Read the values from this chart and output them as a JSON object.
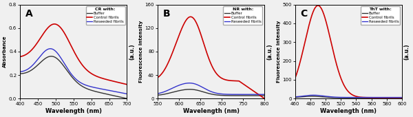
{
  "panel_A": {
    "title": "A",
    "legend_title": "CR with:",
    "xlabel": "Wavelength (nm)",
    "ylabel": "Absorbance",
    "xlim": [
      400,
      700
    ],
    "ylim": [
      0.0,
      0.8
    ],
    "yticks": [
      0.0,
      0.2,
      0.4,
      0.6,
      0.8
    ],
    "xticks": [
      400,
      450,
      500,
      550,
      600,
      650,
      700
    ],
    "legend_labels": [
      "Buffer",
      "Control fibrils",
      "Reseeded fibrils"
    ],
    "line_colors": [
      "#333333",
      "#cc0000",
      "#3333cc"
    ]
  },
  "panel_B": {
    "title": "B",
    "legend_title": "NR with:",
    "xlabel": "Wavelength (nm)",
    "ylabel": "Fluorescence intensity",
    "xlim": [
      550,
      800
    ],
    "ylim": [
      0,
      160
    ],
    "yticks": [
      0,
      40,
      80,
      120,
      160
    ],
    "xticks": [
      550,
      600,
      650,
      700,
      750,
      800
    ],
    "legend_labels": [
      "Buffer",
      "Control fibrils",
      "Reseeded fibrils"
    ],
    "line_colors": [
      "#333333",
      "#cc0000",
      "#3333cc"
    ]
  },
  "panel_C": {
    "title": "C",
    "legend_title": "ThT with:",
    "xlabel": "Wavelength (nm)",
    "ylabel": "Fluorescence intensity",
    "xlim": [
      460,
      600
    ],
    "ylim": [
      0,
      500
    ],
    "yticks": [
      0,
      100,
      200,
      300,
      400,
      500
    ],
    "xticks": [
      460,
      480,
      500,
      520,
      540,
      560,
      580,
      600
    ],
    "legend_labels": [
      "Buffer",
      "Control fibrils",
      "Reseeded fibrils"
    ],
    "line_colors": [
      "#333333",
      "#cc0000",
      "#3333cc"
    ]
  },
  "ylabel_right": "(a.u.)",
  "background_color": "#f0f0f0",
  "plot_bg": "#f0f0f0"
}
